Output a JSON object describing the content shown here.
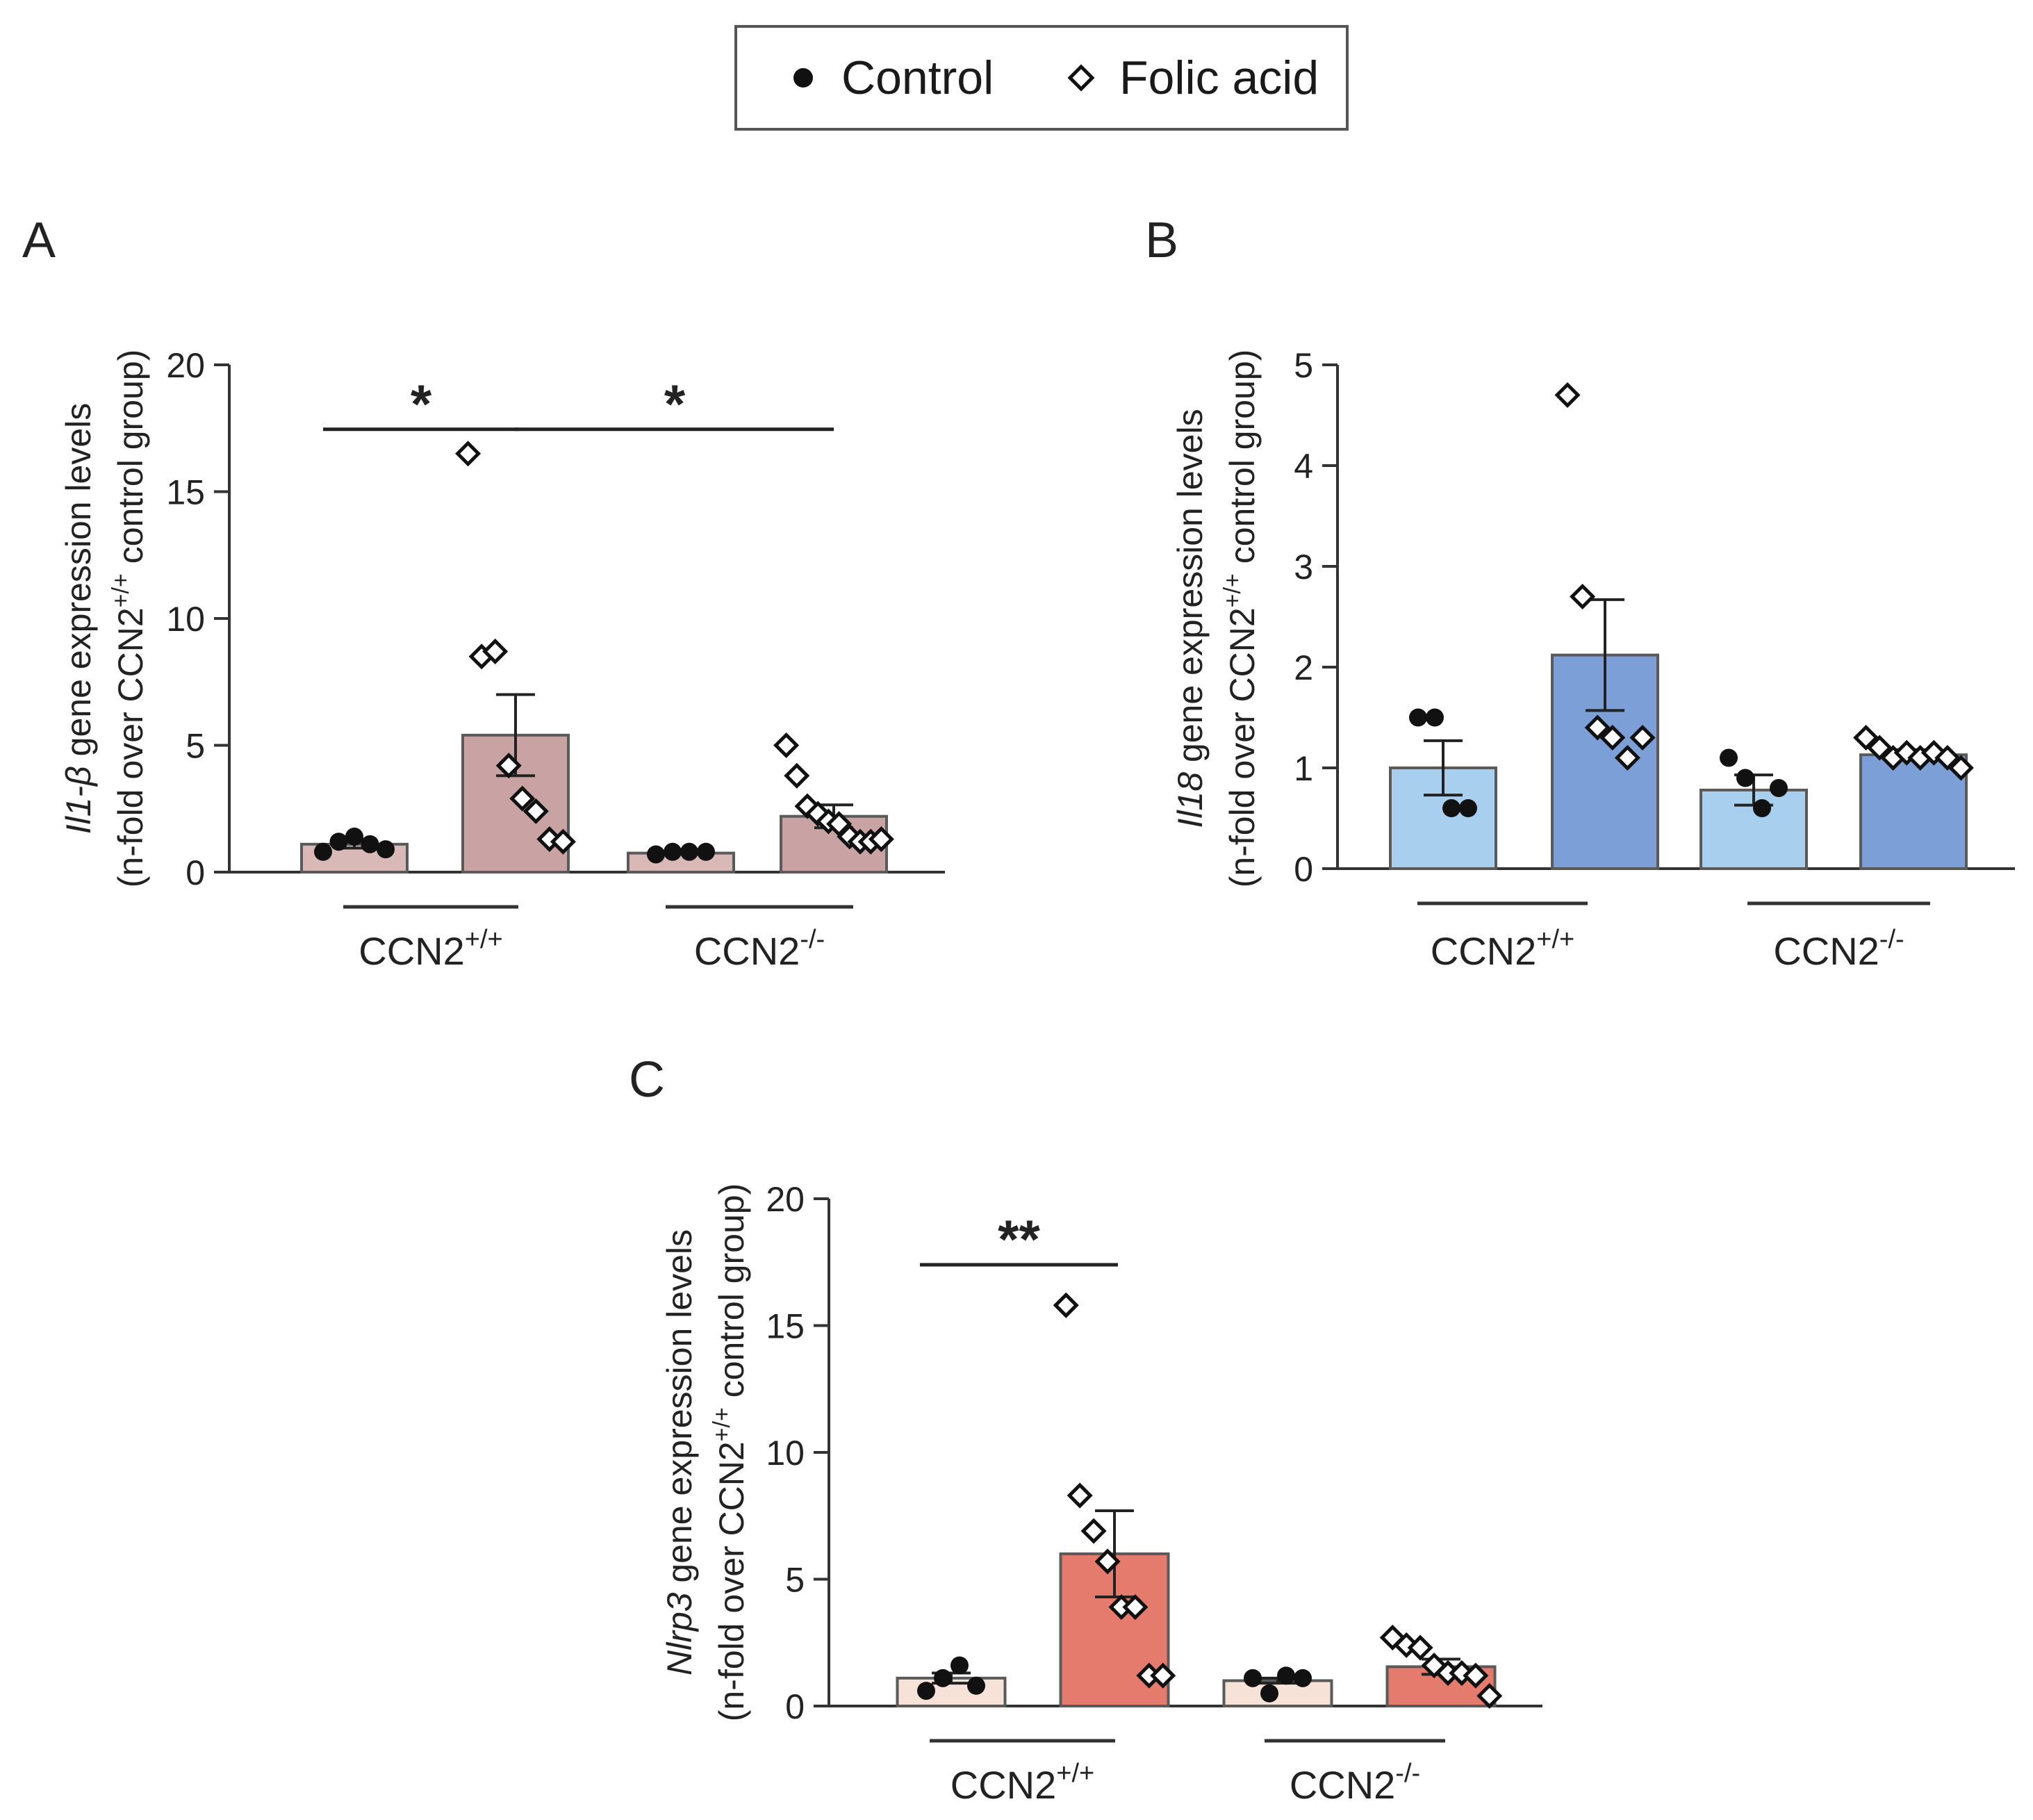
{
  "legend": {
    "control_label": "Control",
    "folic_label": "Folic acid"
  },
  "chart_data": [
    {
      "panel": "A",
      "type": "bar",
      "ylabel_gene": "Il1-β",
      "ylabel_rest": " gene expression levels",
      "ylabel_line2_pre": "(n-fold over CCN2",
      "ylabel_line2_sup": "+/+",
      "ylabel_line2_post": " control group)",
      "ylim": [
        0,
        20
      ],
      "yticks": [
        0,
        5,
        10,
        15,
        20
      ],
      "groups": [
        {
          "base": "CCN2",
          "sup": "+/+"
        },
        {
          "base": "CCN2",
          "sup": "-/-"
        }
      ],
      "colors": {
        "control": "#d9b8b8",
        "folic": "#c9a3a3"
      },
      "bars": [
        {
          "group": 0,
          "treatment": "control",
          "mean": 1.1,
          "sem": 0.15,
          "points": [
            0.8,
            1.2,
            1.4,
            1.1,
            0.9
          ]
        },
        {
          "group": 0,
          "treatment": "folic",
          "mean": 5.4,
          "sem": 1.6,
          "points": [
            16.5,
            8.5,
            8.7,
            4.2,
            2.9,
            2.4,
            1.3,
            1.2
          ]
        },
        {
          "group": 1,
          "treatment": "control",
          "mean": 0.75,
          "sem": 0.05,
          "points": [
            0.7,
            0.8,
            0.8,
            0.8
          ]
        },
        {
          "group": 1,
          "treatment": "folic",
          "mean": 2.2,
          "sem": 0.45,
          "points": [
            5.0,
            3.8,
            2.6,
            2.3,
            2.0,
            1.9,
            1.4,
            1.2,
            1.2,
            1.3
          ]
        }
      ],
      "significance": [
        {
          "label": "*",
          "from_bar": 0,
          "to_bar": 1
        },
        {
          "label": "*",
          "from_bar": 1,
          "to_bar": 3
        }
      ]
    },
    {
      "panel": "B",
      "type": "bar",
      "ylabel_gene": "Il18",
      "ylabel_rest": " gene expression levels",
      "ylabel_line2_pre": "(n-fold over CCN2",
      "ylabel_line2_sup": "+/+",
      "ylabel_line2_post": " control group)",
      "ylim": [
        0,
        5
      ],
      "yticks": [
        0,
        1,
        2,
        3,
        4,
        5
      ],
      "groups": [
        {
          "base": "CCN2",
          "sup": "+/+"
        },
        {
          "base": "CCN2",
          "sup": "-/-"
        }
      ],
      "colors": {
        "control": "#a9cfee",
        "folic": "#7b9fd6"
      },
      "bars": [
        {
          "group": 0,
          "treatment": "control",
          "mean": 1.0,
          "sem": 0.27,
          "points": [
            1.5,
            1.5,
            0.6,
            0.6
          ]
        },
        {
          "group": 0,
          "treatment": "folic",
          "mean": 2.12,
          "sem": 0.55,
          "points": [
            4.7,
            2.7,
            1.4,
            1.3,
            1.1,
            1.3
          ]
        },
        {
          "group": 1,
          "treatment": "control",
          "mean": 0.78,
          "sem": 0.15,
          "points": [
            1.1,
            0.9,
            0.6,
            0.8
          ]
        },
        {
          "group": 1,
          "treatment": "folic",
          "mean": 1.13,
          "sem": 0.05,
          "points": [
            1.3,
            1.2,
            1.1,
            1.15,
            1.1,
            1.15,
            1.1,
            1.0
          ]
        }
      ],
      "significance": []
    },
    {
      "panel": "C",
      "type": "bar",
      "ylabel_gene": "Nlrp3",
      "ylabel_rest": " gene expression levels",
      "ylabel_line2_pre": "(n-fold over CCN2",
      "ylabel_line2_sup": "+/+",
      "ylabel_line2_post": " control group)",
      "ylim": [
        0,
        20
      ],
      "yticks": [
        0,
        5,
        10,
        15,
        20
      ],
      "groups": [
        {
          "base": "CCN2",
          "sup": "+/+"
        },
        {
          "base": "CCN2",
          "sup": "-/-"
        }
      ],
      "colors": {
        "control": "#f7e2d7",
        "folic": "#e57b6c"
      },
      "bars": [
        {
          "group": 0,
          "treatment": "control",
          "mean": 1.1,
          "sem": 0.2,
          "points": [
            0.6,
            1.1,
            1.6,
            0.8
          ]
        },
        {
          "group": 0,
          "treatment": "folic",
          "mean": 6.0,
          "sem": 1.7,
          "points": [
            15.8,
            8.3,
            6.9,
            5.7,
            3.9,
            3.9,
            1.2,
            1.2
          ]
        },
        {
          "group": 1,
          "treatment": "control",
          "mean": 1.0,
          "sem": 0.1,
          "points": [
            1.1,
            0.5,
            1.2,
            1.1
          ]
        },
        {
          "group": 1,
          "treatment": "folic",
          "mean": 1.55,
          "sem": 0.3,
          "points": [
            2.7,
            2.4,
            2.3,
            1.6,
            1.3,
            1.3,
            1.2,
            0.4
          ]
        }
      ],
      "significance": [
        {
          "label": "**",
          "from_bar": 0,
          "to_bar": 1
        }
      ]
    }
  ]
}
